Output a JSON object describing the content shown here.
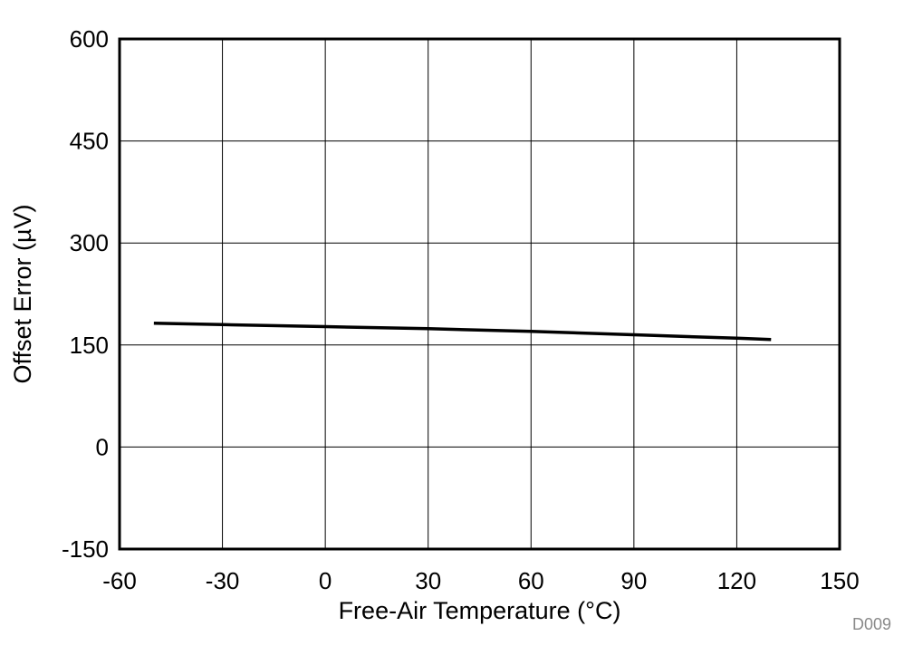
{
  "chart_data": {
    "type": "line",
    "title": "",
    "xlabel": "Free-Air Temperature (°C)",
    "ylabel": "Offset Error (µV)",
    "xlim": [
      -60,
      150
    ],
    "ylim": [
      -150,
      600
    ],
    "xticks": [
      -60,
      -30,
      0,
      30,
      60,
      90,
      120,
      150
    ],
    "yticks": [
      -150,
      0,
      150,
      300,
      450,
      600
    ],
    "grid": true,
    "legend": "none",
    "series": [
      {
        "color": "#000000",
        "x": [
          -50,
          -30,
          0,
          30,
          60,
          90,
          120,
          130
        ],
        "y": [
          182,
          180,
          177,
          174,
          170,
          165,
          160,
          158
        ]
      }
    ]
  },
  "footnote": "D009"
}
